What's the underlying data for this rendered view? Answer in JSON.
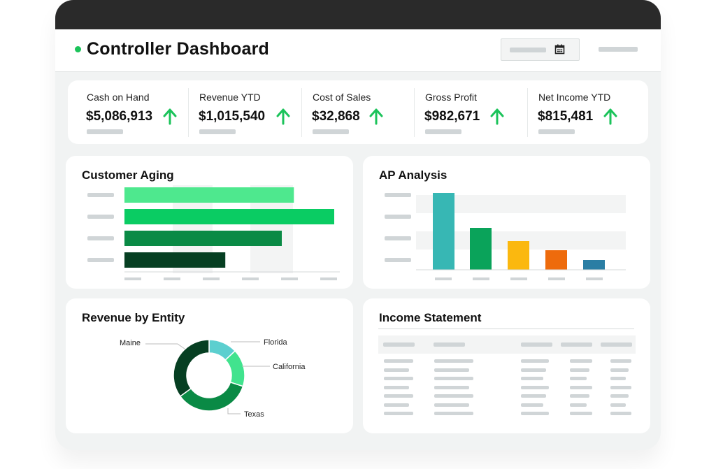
{
  "header": {
    "title": "Controller Dashboard"
  },
  "kpis": [
    {
      "label": "Cash on Hand",
      "value": "$5,086,913",
      "trend": "up"
    },
    {
      "label": "Revenue YTD",
      "value": "$1,015,540",
      "trend": "up"
    },
    {
      "label": "Cost of Sales",
      "value": "$32,868",
      "trend": "up"
    },
    {
      "label": "Gross Profit",
      "value": "$982,671",
      "trend": "up"
    },
    {
      "label": "Net Income YTD",
      "value": "$815,481",
      "trend": "up"
    }
  ],
  "colors": {
    "accent_green": "#1bc35a",
    "aging": [
      "#4ee88e",
      "#0acc63",
      "#0a8a45",
      "#063f22"
    ],
    "ap": [
      "#37b7b4",
      "#0aa35a",
      "#fbb80f",
      "#ee6b0c",
      "#2a7ea4"
    ],
    "donut": [
      "#5ccfcf",
      "#41e38e",
      "#0a8a45",
      "#063f22"
    ]
  },
  "customer_aging": {
    "title": "Customer Aging",
    "chart_data": {
      "type": "bar",
      "orientation": "horizontal",
      "values": [
        0.42,
        0.52,
        0.39,
        0.25
      ]
    }
  },
  "ap_analysis": {
    "title": "AP Analysis",
    "chart_data": {
      "type": "bar",
      "values": [
        110,
        60,
        41,
        28,
        14
      ]
    }
  },
  "revenue_by_entity": {
    "title": "Revenue by Entity",
    "chart_data": {
      "type": "pie",
      "labels": [
        "Florida",
        "California",
        "Texas",
        "Maine"
      ],
      "values": [
        13,
        17,
        35,
        35
      ]
    }
  },
  "income_statement": {
    "title": "Income Statement"
  }
}
